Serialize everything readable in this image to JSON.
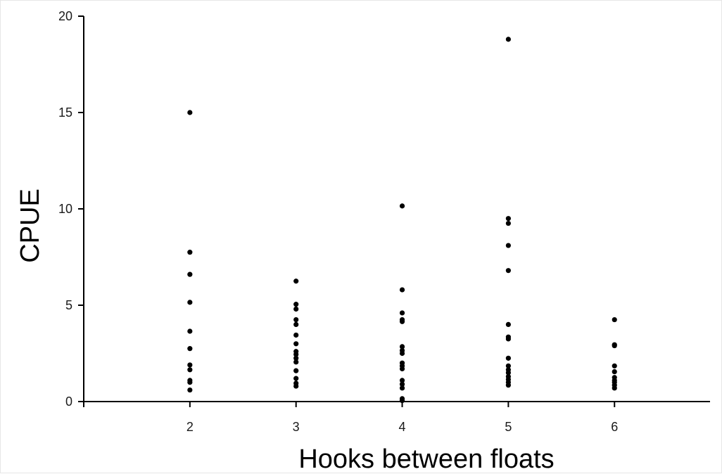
{
  "chart_data": {
    "type": "scatter",
    "title": "",
    "xlabel": "Hooks between floats",
    "ylabel": "CPUE",
    "xlim": [
      1,
      6.9
    ],
    "ylim": [
      0,
      20
    ],
    "x_ticks": [
      2,
      3,
      4,
      5,
      6
    ],
    "y_ticks": [
      0,
      5,
      10,
      15,
      20
    ],
    "grid": false,
    "legend": "none",
    "marker_color": "#000000",
    "points": [
      {
        "x": 2,
        "y": 15.0
      },
      {
        "x": 2,
        "y": 7.75
      },
      {
        "x": 2,
        "y": 6.6
      },
      {
        "x": 2,
        "y": 5.15
      },
      {
        "x": 2,
        "y": 3.65
      },
      {
        "x": 2,
        "y": 2.75
      },
      {
        "x": 2,
        "y": 1.9
      },
      {
        "x": 2,
        "y": 1.65
      },
      {
        "x": 2,
        "y": 1.1
      },
      {
        "x": 2,
        "y": 1.0
      },
      {
        "x": 2,
        "y": 0.6
      },
      {
        "x": 3,
        "y": 6.25
      },
      {
        "x": 3,
        "y": 5.05
      },
      {
        "x": 3,
        "y": 4.8
      },
      {
        "x": 3,
        "y": 4.25
      },
      {
        "x": 3,
        "y": 4.0
      },
      {
        "x": 3,
        "y": 3.45
      },
      {
        "x": 3,
        "y": 3.0
      },
      {
        "x": 3,
        "y": 2.6
      },
      {
        "x": 3,
        "y": 2.45
      },
      {
        "x": 3,
        "y": 2.25
      },
      {
        "x": 3,
        "y": 2.05
      },
      {
        "x": 3,
        "y": 1.6
      },
      {
        "x": 3,
        "y": 1.2
      },
      {
        "x": 3,
        "y": 0.95
      },
      {
        "x": 3,
        "y": 0.8
      },
      {
        "x": 4,
        "y": 10.15
      },
      {
        "x": 4,
        "y": 5.8
      },
      {
        "x": 4,
        "y": 4.6
      },
      {
        "x": 4,
        "y": 4.25
      },
      {
        "x": 4,
        "y": 4.15
      },
      {
        "x": 4,
        "y": 2.85
      },
      {
        "x": 4,
        "y": 2.65
      },
      {
        "x": 4,
        "y": 2.5
      },
      {
        "x": 4,
        "y": 2.0
      },
      {
        "x": 4,
        "y": 1.85
      },
      {
        "x": 4,
        "y": 1.7
      },
      {
        "x": 4,
        "y": 1.1
      },
      {
        "x": 4,
        "y": 0.9
      },
      {
        "x": 4,
        "y": 0.7
      },
      {
        "x": 4,
        "y": 0.15
      },
      {
        "x": 4,
        "y": 0.05
      },
      {
        "x": 5,
        "y": 18.8
      },
      {
        "x": 5,
        "y": 9.5
      },
      {
        "x": 5,
        "y": 9.25
      },
      {
        "x": 5,
        "y": 8.1
      },
      {
        "x": 5,
        "y": 6.8
      },
      {
        "x": 5,
        "y": 4.0
      },
      {
        "x": 5,
        "y": 3.35
      },
      {
        "x": 5,
        "y": 3.25
      },
      {
        "x": 5,
        "y": 2.25
      },
      {
        "x": 5,
        "y": 1.85
      },
      {
        "x": 5,
        "y": 1.65
      },
      {
        "x": 5,
        "y": 1.5
      },
      {
        "x": 5,
        "y": 1.3
      },
      {
        "x": 5,
        "y": 1.15
      },
      {
        "x": 5,
        "y": 1.0
      },
      {
        "x": 5,
        "y": 0.85
      },
      {
        "x": 6,
        "y": 4.25
      },
      {
        "x": 6,
        "y": 2.95
      },
      {
        "x": 6,
        "y": 2.9
      },
      {
        "x": 6,
        "y": 1.85
      },
      {
        "x": 6,
        "y": 1.55
      },
      {
        "x": 6,
        "y": 1.25
      },
      {
        "x": 6,
        "y": 1.1
      },
      {
        "x": 6,
        "y": 1.0
      },
      {
        "x": 6,
        "y": 0.85
      },
      {
        "x": 6,
        "y": 0.7
      }
    ]
  }
}
